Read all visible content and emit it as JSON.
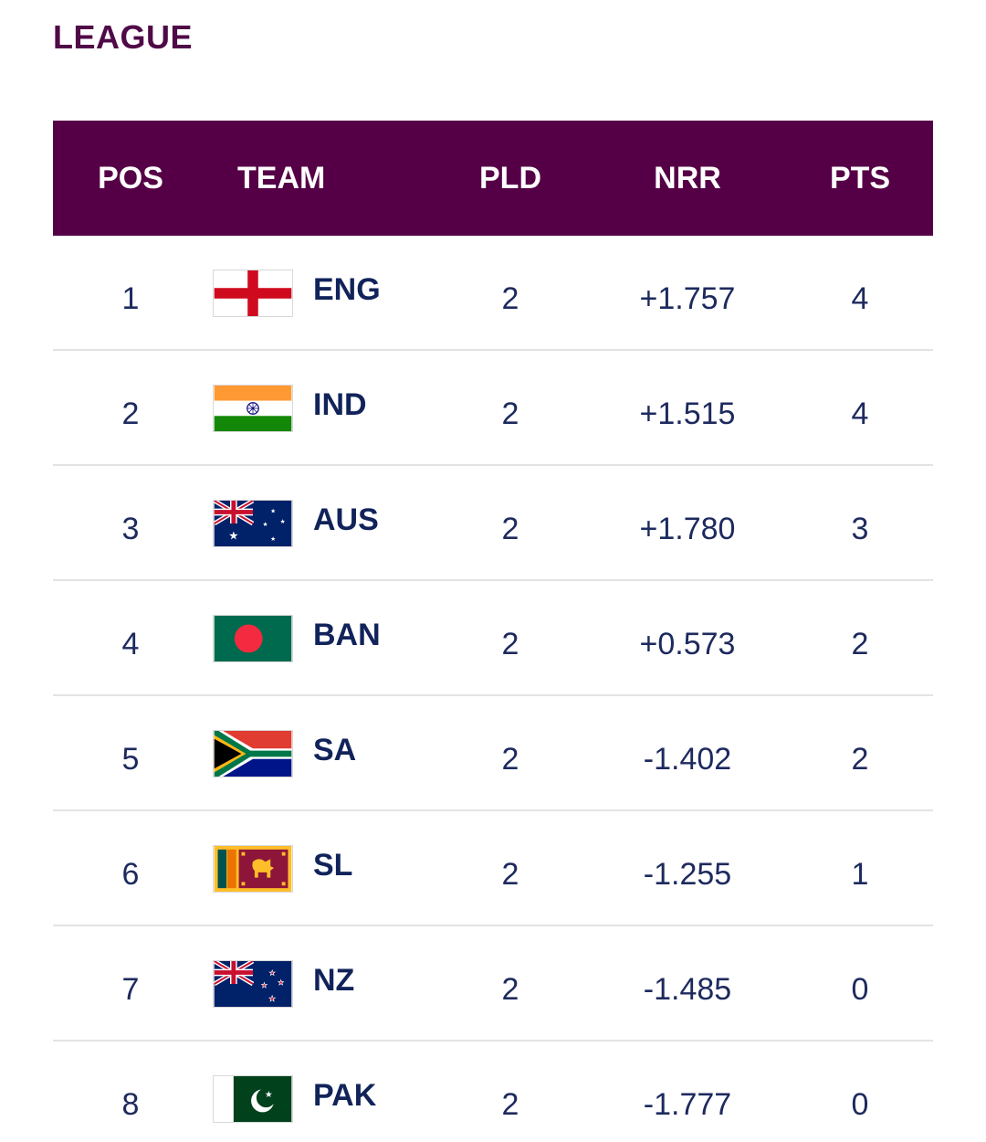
{
  "title": "LEAGUE",
  "columns": {
    "pos": "POS",
    "team": "TEAM",
    "pld": "PLD",
    "nrr": "NRR",
    "pts": "PTS"
  },
  "header_color": "#550046",
  "rows": [
    {
      "pos": "1",
      "team": "ENG",
      "flag": "england-flag-icon",
      "pld": "2",
      "nrr": "+1.757",
      "pts": "4"
    },
    {
      "pos": "2",
      "team": "IND",
      "flag": "india-flag-icon",
      "pld": "2",
      "nrr": "+1.515",
      "pts": "4"
    },
    {
      "pos": "3",
      "team": "AUS",
      "flag": "australia-flag-icon",
      "pld": "2",
      "nrr": "+1.780",
      "pts": "3"
    },
    {
      "pos": "4",
      "team": "BAN",
      "flag": "bangladesh-flag-icon",
      "pld": "2",
      "nrr": "+0.573",
      "pts": "2"
    },
    {
      "pos": "5",
      "team": "SA",
      "flag": "south-africa-flag-icon",
      "pld": "2",
      "nrr": "-1.402",
      "pts": "2"
    },
    {
      "pos": "6",
      "team": "SL",
      "flag": "sri-lanka-flag-icon",
      "pld": "2",
      "nrr": "-1.255",
      "pts": "1"
    },
    {
      "pos": "7",
      "team": "NZ",
      "flag": "new-zealand-flag-icon",
      "pld": "2",
      "nrr": "-1.485",
      "pts": "0"
    },
    {
      "pos": "8",
      "team": "PAK",
      "flag": "pakistan-flag-icon",
      "pld": "2",
      "nrr": "-1.777",
      "pts": "0"
    }
  ]
}
